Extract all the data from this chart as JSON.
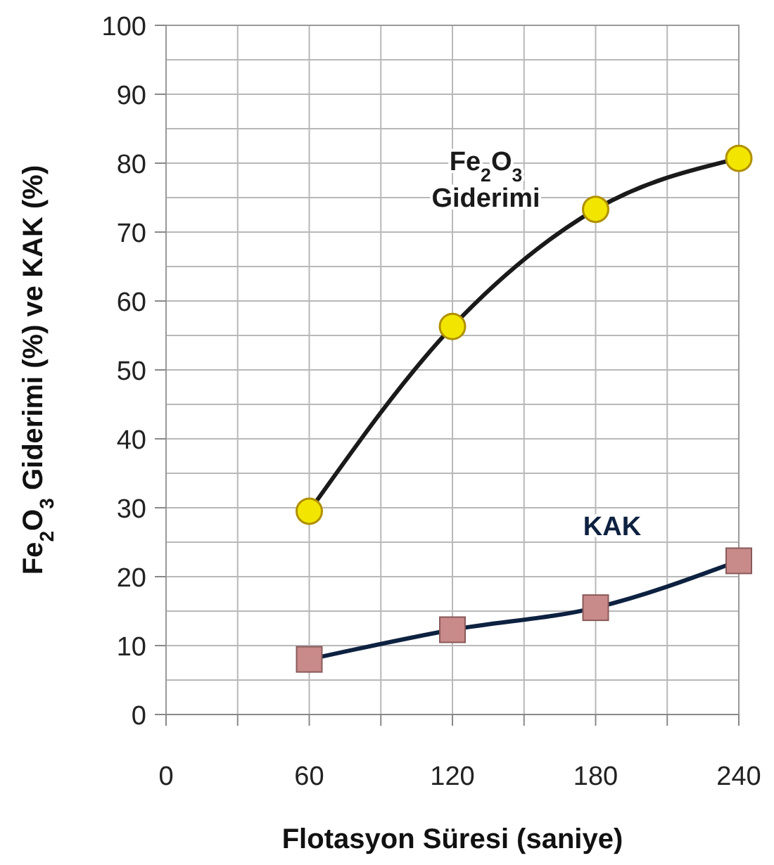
{
  "chart_data": {
    "type": "line",
    "xlabel": "Flotasyon Süresi (saniye)",
    "ylabel": "Fe$_{2}$O$_{3}$  Giderimi (%) ve KAK (%)",
    "x": [
      60,
      120,
      180,
      240
    ],
    "series": [
      {
        "name": "Fe$_{2}$O$_{3}$ Giderimi",
        "color": "#1a1a1a",
        "colors": [
          "#f2e600",
          "#f2e600",
          "#f2e600",
          "#f2e600"
        ],
        "marker": "circle",
        "values": [
          29.5,
          56.3,
          73.3,
          80.7
        ]
      },
      {
        "name": "KAK",
        "color": "#0d2140",
        "colors": [
          "#c98a8a",
          "#c98a8a",
          "#c98a8a",
          "#c98a8a"
        ],
        "marker": "square",
        "values": [
          8,
          12.3,
          15.5,
          22.3
        ]
      }
    ],
    "xlim": [
      0,
      240
    ],
    "xticks": [
      0,
      {
        "value": 30,
        "label": null
      },
      60,
      {
        "value": 90,
        "label": null
      },
      120,
      {
        "value": 150,
        "label": null
      },
      180,
      {
        "value": 210,
        "label": null
      },
      240
    ],
    "ylim": [
      0,
      100
    ],
    "yticks": [
      0,
      {
        "value": 5,
        "label": null
      },
      10,
      {
        "value": 15,
        "label": null
      },
      20,
      {
        "value": 25,
        "label": null
      },
      30,
      {
        "value": 35,
        "label": null
      },
      40,
      {
        "value": 45,
        "label": null
      },
      50,
      {
        "value": 55,
        "label": null
      },
      60,
      {
        "value": 65,
        "label": null
      },
      70,
      {
        "value": 75,
        "label": null
      },
      80,
      {
        "value": 85,
        "label": null
      },
      90,
      {
        "value": 95,
        "label": null
      },
      100
    ],
    "grid": true
  }
}
